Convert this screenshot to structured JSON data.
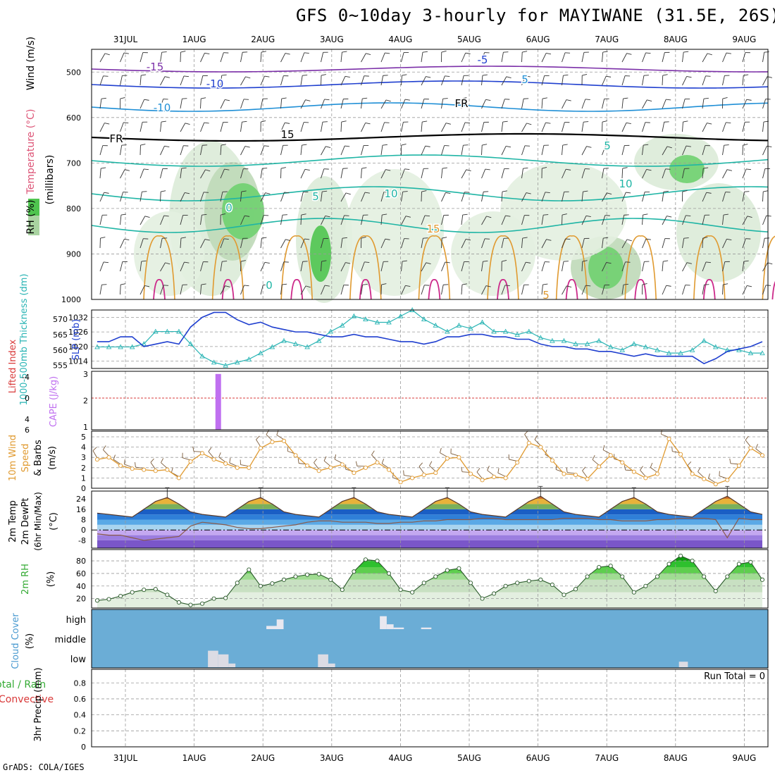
{
  "title": "GFS 0~10day 3-hourly for MAYIWANE (31.5E, 26S)",
  "footer": "GrADS: COLA/IGES",
  "colors": {
    "grid": "#9a9a9a",
    "slp": "#1f3fcf",
    "thickness": "#2bb5b5",
    "cape": "#c070f0",
    "lifted": "#d93a3a",
    "wind10m": "#e09a30",
    "barb": "#7a5a3a",
    "rh2m": "#33aa33",
    "cloud_bg": "#6badd6",
    "cloud_bar": "#e8e8f0"
  },
  "chart_data": {
    "date_labels": [
      "31JUL",
      "1AUG",
      "2AUG",
      "3AUG",
      "4AUG",
      "5AUG",
      "6AUG",
      "7AUG",
      "8AUG",
      "9AUG"
    ],
    "panels": [
      {
        "id": "upper_air",
        "type": "heatmap",
        "ylabel_parts": [
          "RH (%)",
          "Temperature (°C)",
          "Wind (m/s)"
        ],
        "ylabel2": "(millibars)",
        "yticks": [
          500,
          600,
          700,
          800,
          900,
          1000
        ],
        "ylim": [
          1000,
          450
        ],
        "contour_labels": [
          "-15",
          "-10",
          "-10",
          "-5",
          "5",
          "FR",
          "FR",
          "5",
          "10",
          "10",
          "5",
          "15",
          "0",
          "0",
          "5",
          "15"
        ]
      },
      {
        "id": "slp_thickness",
        "type": "line",
        "left_label": "1000-500mb Thickness (dm)",
        "right_label": "SLP (mb)",
        "left_ticks": [
          555,
          560,
          565,
          570
        ],
        "right_ticks": [
          1014,
          1020,
          1026,
          1032
        ],
        "series": [
          {
            "name": "SLP (mb)",
            "values": [
              1022,
              1022,
              1024,
              1024,
              1020,
              1021,
              1022,
              1021,
              1028,
              1032,
              1034,
              1034,
              1031,
              1029,
              1030,
              1028,
              1027,
              1026,
              1026,
              1025,
              1024,
              1024,
              1025,
              1024,
              1024,
              1023,
              1022,
              1022,
              1021,
              1022,
              1024,
              1024,
              1025,
              1025,
              1024,
              1024,
              1023,
              1023,
              1021,
              1020,
              1020,
              1019,
              1019,
              1018,
              1018,
              1017,
              1016,
              1017,
              1016,
              1016,
              1016,
              1016,
              1013,
              1015,
              1018,
              1019,
              1020,
              1022
            ]
          },
          {
            "name": "1000-500mb Thickness (dm)",
            "values": [
              561,
              561,
              561,
              561,
              562,
              566,
              566,
              566,
              562,
              558,
              556,
              555,
              556,
              557,
              559,
              561,
              563,
              562,
              561,
              563,
              566,
              568,
              571,
              570,
              569,
              569,
              571,
              573,
              570,
              568,
              566,
              568,
              567,
              569,
              566,
              566,
              565,
              566,
              564,
              563,
              563,
              562,
              562,
              563,
              561,
              560,
              562,
              561,
              560,
              559,
              559,
              560,
              563,
              561,
              560,
              560,
              559,
              559
            ]
          }
        ]
      },
      {
        "id": "cape_li",
        "type": "bar",
        "left_label": "Lifted Index",
        "right_label": "CAPE (J/kg)",
        "left_ticks": [
          -4,
          0,
          4,
          6
        ],
        "right_ticks": [
          1,
          2,
          3
        ],
        "cape_bar": {
          "x_day": 1.35,
          "value": 3
        },
        "li_reference": 0
      },
      {
        "id": "wind10m",
        "type": "line",
        "ylabel": "10m Wind Speed & Barbs (m/s)",
        "yticks": [
          0,
          1,
          2,
          3,
          4,
          5
        ],
        "series": [
          {
            "name": "10m Wind Speed",
            "values": [
              2.8,
              3.0,
              2.2,
              1.9,
              1.8,
              1.7,
              1.8,
              1.0,
              2.6,
              3.4,
              2.8,
              2.4,
              2.0,
              2.0,
              3.9,
              4.5,
              4.6,
              3.2,
              2.2,
              1.7,
              2.0,
              2.3,
              1.5,
              2.0,
              2.5,
              1.8,
              0.6,
              1.0,
              1.3,
              1.5,
              2.9,
              3.0,
              1.4,
              0.8,
              1.1,
              1.0,
              2.5,
              4.4,
              4.0,
              2.7,
              1.4,
              1.3,
              0.9,
              2.1,
              3.2,
              2.5,
              1.6,
              1.0,
              1.4,
              4.8,
              3.3,
              1.4,
              0.9,
              0.4,
              0.8,
              2.2,
              3.9,
              3.2
            ]
          }
        ]
      },
      {
        "id": "temp2m",
        "type": "area",
        "ylabel": "2m Temp 2m DewPt (6hr Min/Max) (°C)",
        "yticks": [
          -8,
          0,
          8,
          16,
          24
        ],
        "series": [
          {
            "name": "2m Temp",
            "values": [
              13,
              12,
              11,
              10,
              16,
              22,
              25,
              20,
              14,
              12,
              11,
              10,
              16,
              22,
              25,
              20,
              14,
              12,
              11,
              10,
              16,
              22,
              25,
              20,
              14,
              12,
              11,
              10,
              16,
              22,
              25,
              20,
              14,
              12,
              11,
              10,
              16,
              22,
              26,
              20,
              14,
              12,
              11,
              10,
              16,
              22,
              25,
              20,
              14,
              12,
              11,
              10,
              16,
              22,
              26,
              20,
              14,
              12
            ]
          },
          {
            "name": "2m DewPt",
            "values": [
              -3,
              -4,
              -4,
              -6,
              -8,
              -7,
              -6,
              -5,
              3,
              6,
              5,
              4,
              2,
              1,
              1,
              2,
              3,
              4,
              6,
              7,
              7,
              6,
              6,
              6,
              5,
              5,
              6,
              6,
              7,
              7,
              8,
              8,
              8,
              9,
              9,
              8,
              8,
              8,
              8,
              8,
              9,
              9,
              9,
              8,
              8,
              7,
              7,
              7,
              8,
              8,
              9,
              9,
              9,
              8,
              -6,
              9,
              8,
              8
            ]
          }
        ]
      },
      {
        "id": "rh2m",
        "type": "area",
        "ylabel": "2m RH (%)",
        "yticks": [
          20,
          40,
          60,
          80
        ],
        "series": [
          {
            "name": "2m RH",
            "values": [
              17,
              19,
              24,
              30,
              34,
              35,
              26,
              14,
              10,
              12,
              20,
              21,
              45,
              66,
              40,
              44,
              50,
              55,
              58,
              59,
              50,
              34,
              63,
              82,
              80,
              60,
              34,
              30,
              45,
              55,
              65,
              68,
              45,
              20,
              28,
              40,
              45,
              48,
              50,
              42,
              26,
              35,
              55,
              70,
              72,
              55,
              30,
              40,
              55,
              75,
              88,
              80,
              55,
              32,
              55,
              75,
              78,
              50
            ]
          }
        ]
      },
      {
        "id": "cloud",
        "type": "bar",
        "ylabel": "Cloud Cover (%)",
        "ylevels": [
          "high",
          "middle",
          "low"
        ],
        "high_blocks": [
          {
            "d0": 2.05,
            "d1": 2.3,
            "amt": 0.2
          },
          {
            "d0": 2.2,
            "d1": 2.3,
            "amt": 0.6
          },
          {
            "d0": 3.7,
            "d1": 3.8,
            "amt": 0.8
          },
          {
            "d0": 3.8,
            "d1": 3.9,
            "amt": 0.3
          },
          {
            "d0": 3.9,
            "d1": 4.05,
            "amt": 0.1
          },
          {
            "d0": 4.3,
            "d1": 4.45,
            "amt": 0.1
          }
        ],
        "low_blocks": [
          {
            "d0": 1.2,
            "d1": 1.35,
            "amt": 0.9
          },
          {
            "d0": 1.35,
            "d1": 1.5,
            "amt": 0.7
          },
          {
            "d0": 1.5,
            "d1": 1.6,
            "amt": 0.2
          },
          {
            "d0": 2.8,
            "d1": 2.95,
            "amt": 0.7
          },
          {
            "d0": 2.95,
            "d1": 3.05,
            "amt": 0.2
          },
          {
            "d0": 8.05,
            "d1": 8.18,
            "amt": 0.3
          }
        ]
      },
      {
        "id": "precip",
        "type": "bar",
        "ylabel": "3hr Precip (mm)",
        "left_label_parts": [
          "Total / Rain",
          "Convective"
        ],
        "yticks": [
          "0",
          "0.2",
          "0.4",
          "0.6",
          "0.8"
        ],
        "run_total": "Run Total = 0",
        "values": []
      }
    ]
  }
}
